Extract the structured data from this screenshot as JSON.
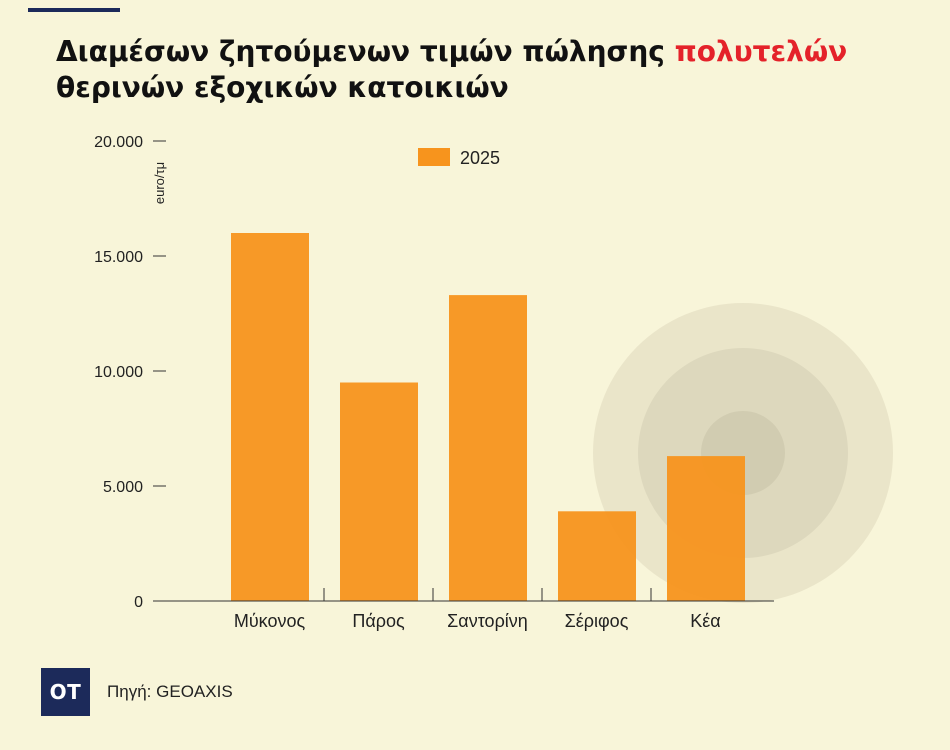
{
  "header": {
    "title_plain": "Διαμέσων ζητούμενων τιμών πώλησης ",
    "title_highlight": "πολυτελών",
    "title_line2": "θερινών εξοχικών κατοικιών"
  },
  "footer": {
    "logo_text": "OT",
    "source": "Πηγή: GEOAXIS"
  },
  "colors": {
    "background": "#f8f5d9",
    "bar": "#f7941d",
    "highlight": "#e4222a",
    "navy": "#1c2a5a"
  },
  "chart_data": {
    "type": "bar",
    "categories": [
      "Μύκονος",
      "Πάρος",
      "Σαντορίνη",
      "Σέριφος",
      "Κέα"
    ],
    "series": [
      {
        "name": "2025",
        "values": [
          16000,
          9500,
          13300,
          3900,
          6300
        ]
      }
    ],
    "ylabel": "euro/τμ",
    "ylim": [
      0,
      20000
    ],
    "yticks": [
      0,
      5000,
      10000,
      15000,
      20000
    ],
    "ytick_labels": [
      "0",
      "5.000",
      "10.000",
      "15.000",
      "20.000"
    ],
    "legend_position": "top-center",
    "grid": false
  }
}
